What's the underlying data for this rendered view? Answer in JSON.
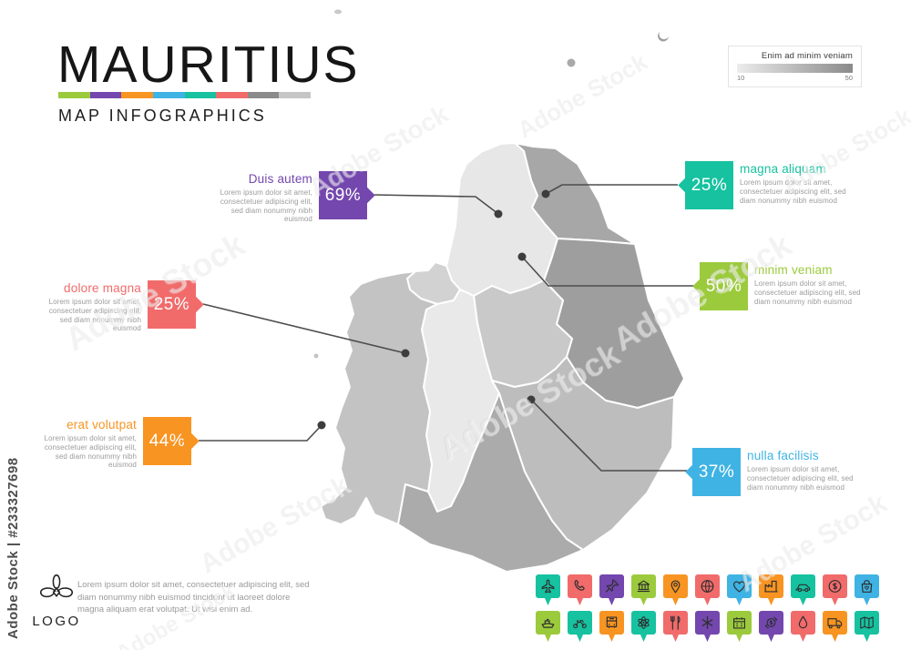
{
  "title": "MAURITIUS",
  "subtitle": "MAP INFOGRAPHICS",
  "stripe_colors": [
    "#9cca3d",
    "#7347ae",
    "#f89422",
    "#3fb3e3",
    "#16c2a0",
    "#f16b6b",
    "#8b8b8b",
    "#c6c6c6"
  ],
  "legend": {
    "label": "Enim ad minim veniam",
    "min": "10",
    "max": "50",
    "gradient_from": "#ececec",
    "gradient_to": "#8a8a8a"
  },
  "callouts": [
    {
      "id": "duis-autem",
      "title": "Duis autem",
      "value": "69%",
      "color": "#7347ae",
      "side": "left",
      "body": "Lorem ipsum dolor sit amet, consectetuer adipiscing elit, sed diam nonummy nibh euismod"
    },
    {
      "id": "magna-aliquam",
      "title": "magna aliquam",
      "value": "25%",
      "color": "#16c2a0",
      "side": "right",
      "body": "Lorem ipsum dolor sit amet, consectetuer adipiscing elit, sed diam nonummy nibh euismod"
    },
    {
      "id": "dolore-magna",
      "title": "dolore magna",
      "value": "25%",
      "color": "#f16b6b",
      "side": "left",
      "body": "Lorem ipsum dolor sit amet, consectetuer adipiscing elit, sed diam nonummy nibh euismod"
    },
    {
      "id": "minim-veniam",
      "title": "minim veniam",
      "value": "50%",
      "color": "#9cca3d",
      "side": "right",
      "body": "Lorem ipsum dolor sit amet, consectetuer adipiscing elit, sed diam nonummy nibh euismod"
    },
    {
      "id": "erat-volutpat",
      "title": "erat volutpat",
      "value": "44%",
      "color": "#f89422",
      "side": "left",
      "body": "Lorem ipsum dolor sit amet, consectetuer adipiscing elit, sed diam nonummy nibh euismod"
    },
    {
      "id": "nulla-facilisis",
      "title": "nulla facilisis",
      "value": "37%",
      "color": "#3fb3e3",
      "side": "right",
      "body": "Lorem ipsum dolor sit amet, consectetuer adipiscing elit, sed diam nonummy nibh euismod"
    }
  ],
  "map": {
    "district_fills": {
      "north": "#a7a7a7",
      "flacq": "#9e9e9e",
      "pamplemousses": "#e7e7e7",
      "port-louis": "#d2d2d2",
      "moka": "#c9c9c9",
      "plaines": "#e9e9e9",
      "black-river": "#c3c3c3",
      "grand-port": "#bdbdbd",
      "savanne": "#ababab"
    }
  },
  "footer": {
    "logo_text": "LOGO",
    "body": "Lorem ipsum dolor sit amet, consectetuer adipiscing elit, sed diam nonummy nibh euismod tincidunt ut laoreet dolore magna aliquam erat volutpat. Ut wisi enim ad."
  },
  "pins": [
    [
      {
        "icon": "plane",
        "color": "#16c2a0"
      },
      {
        "icon": "phone",
        "color": "#f16b6b"
      },
      {
        "icon": "pushpin",
        "color": "#7347ae"
      },
      {
        "icon": "bank",
        "color": "#9cca3d"
      },
      {
        "icon": "pin",
        "color": "#f89422"
      },
      {
        "icon": "globe",
        "color": "#f16b6b"
      },
      {
        "icon": "heart",
        "color": "#3fb3e3"
      },
      {
        "icon": "factory",
        "color": "#f89422"
      },
      {
        "icon": "car",
        "color": "#16c2a0"
      },
      {
        "icon": "dollar",
        "color": "#f16b6b"
      },
      {
        "icon": "bag",
        "color": "#3fb3e3"
      }
    ],
    [
      {
        "icon": "ship",
        "color": "#9cca3d"
      },
      {
        "icon": "motorcycle",
        "color": "#16c2a0"
      },
      {
        "icon": "bus",
        "color": "#f89422"
      },
      {
        "icon": "atom",
        "color": "#16c2a0"
      },
      {
        "icon": "restaurant",
        "color": "#f16b6b"
      },
      {
        "icon": "medical",
        "color": "#7347ae"
      },
      {
        "icon": "calendar",
        "color": "#9cca3d"
      },
      {
        "icon": "money",
        "color": "#7347ae"
      },
      {
        "icon": "drop",
        "color": "#f16b6b"
      },
      {
        "icon": "truck",
        "color": "#f89422"
      },
      {
        "icon": "map",
        "color": "#16c2a0"
      }
    ]
  ],
  "watermark": {
    "vertical": "Adobe Stock | #233327698",
    "diagonal": "Adobe Stock"
  }
}
